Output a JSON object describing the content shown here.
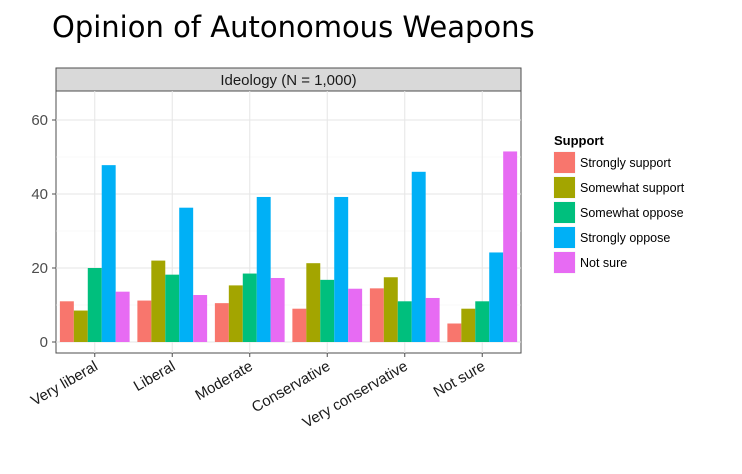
{
  "title": "Opinion of Autonomous Weapons",
  "chart_data": {
    "type": "bar",
    "facet_label": "Ideology (N = 1,000)",
    "categories": [
      "Very liberal",
      "Liberal",
      "Moderate",
      "Conservative",
      "Very conservative",
      "Not sure"
    ],
    "legend_title": "Support",
    "legend_position": "right",
    "grid": true,
    "ylim": [
      0,
      68
    ],
    "yticks": [
      0,
      20,
      40,
      60
    ],
    "ytick_labels": [
      "0",
      "20",
      "40",
      "60"
    ],
    "series": [
      {
        "name": "Strongly support",
        "color": "#F8766D",
        "values": [
          11,
          11.2,
          10.5,
          9,
          14.5,
          5
        ]
      },
      {
        "name": "Somewhat support",
        "color": "#A3A500",
        "values": [
          8.5,
          22,
          15.3,
          21.3,
          17.5,
          9
        ]
      },
      {
        "name": "Somewhat oppose",
        "color": "#00BF7D",
        "values": [
          20,
          18.2,
          18.5,
          16.8,
          11,
          11
        ]
      },
      {
        "name": "Strongly oppose",
        "color": "#00B0F6",
        "values": [
          47.8,
          36.3,
          39.2,
          39.2,
          46,
          24.2
        ]
      },
      {
        "name": "Not sure",
        "color": "#E76BF3",
        "values": [
          13.6,
          12.7,
          17.3,
          14.4,
          11.9,
          51.5
        ]
      }
    ]
  }
}
